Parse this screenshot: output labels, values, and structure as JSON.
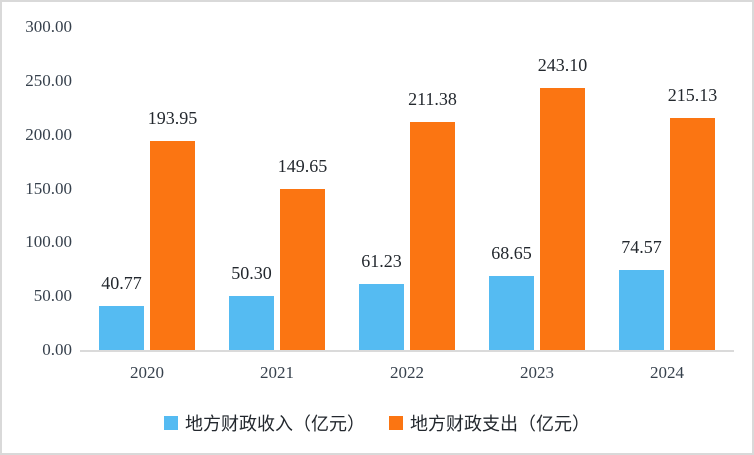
{
  "chart_data": {
    "type": "bar",
    "title": "",
    "xlabel": "",
    "ylabel": "",
    "categories": [
      "2020",
      "2021",
      "2022",
      "2023",
      "2024"
    ],
    "series": [
      {
        "name": "地方财政收入（亿元）",
        "color": "#55bbf2",
        "values": [
          40.77,
          50.3,
          61.23,
          68.65,
          74.57
        ],
        "value_labels": [
          "40.77",
          "50.30",
          "61.23",
          "68.65",
          "74.57"
        ]
      },
      {
        "name": "地方财政支出（亿元）",
        "color": "#fb7512",
        "values": [
          193.95,
          149.65,
          211.38,
          243.1,
          215.13
        ],
        "value_labels": [
          "193.95",
          "149.65",
          "211.38",
          "243.10",
          "215.13"
        ]
      }
    ],
    "ylim": [
      0,
      300
    ],
    "ytick_step": 50,
    "ytick_labels": [
      "0.00",
      "50.00",
      "100.00",
      "150.00",
      "200.00",
      "250.00",
      "300.00"
    ],
    "grid": false,
    "legend_position": "bottom",
    "axis_line_color": "#dadada",
    "data_labels_shown": true
  }
}
